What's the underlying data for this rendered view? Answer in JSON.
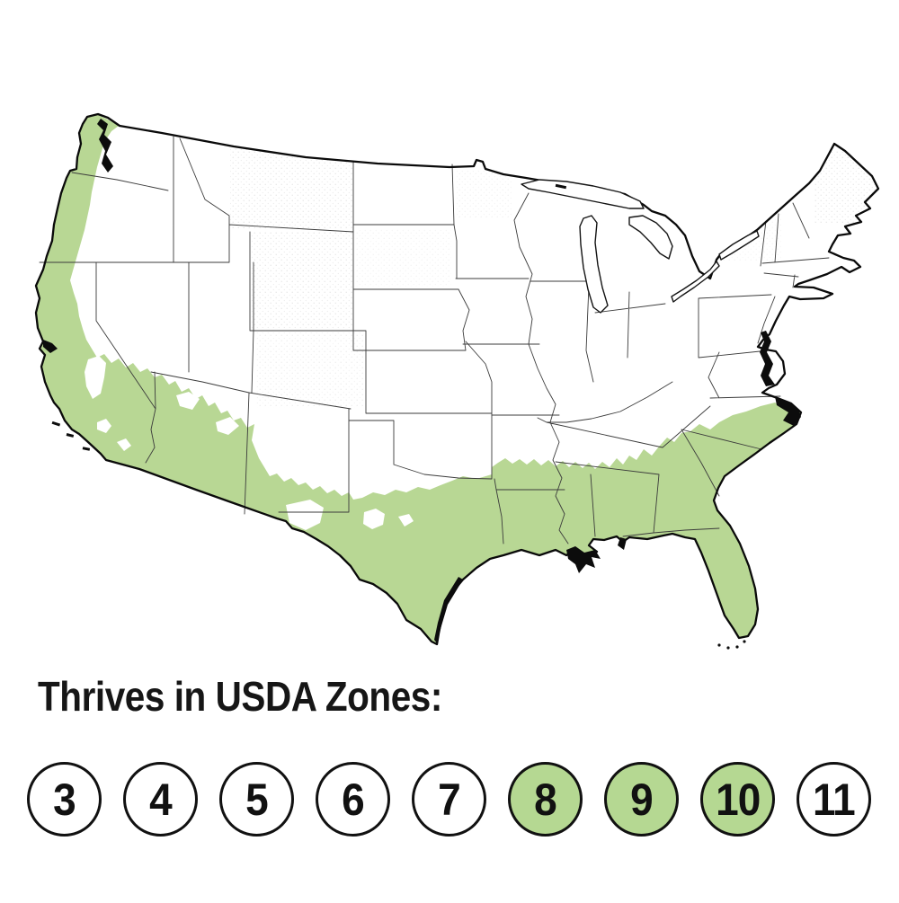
{
  "page": {
    "background_color": "#ffffff"
  },
  "map": {
    "kind": "USDA hardiness zone map of the contiguous United States",
    "land_color": "#ffffff",
    "highlight_color": "#b8d794",
    "coastline_color": "#0a0a0a",
    "state_border_color": "#3b3b3b",
    "highlighted_zones": [
      "8",
      "9",
      "10"
    ],
    "highlighted_region_hint": "Pacific coast strip and southern tier: southern California, Arizona, New Mexico, Texas, Gulf states, Florida, Georgia, South Carolina, coastal North Carolina"
  },
  "legend": {
    "title": "Thrives in USDA Zones:",
    "zones": [
      {
        "label": "3",
        "highlighted": false
      },
      {
        "label": "4",
        "highlighted": false
      },
      {
        "label": "5",
        "highlighted": false
      },
      {
        "label": "6",
        "highlighted": false
      },
      {
        "label": "7",
        "highlighted": false
      },
      {
        "label": "8",
        "highlighted": true
      },
      {
        "label": "9",
        "highlighted": true
      },
      {
        "label": "10",
        "highlighted": true
      },
      {
        "label": "11",
        "highlighted": false
      }
    ],
    "colors": {
      "highlight_fill": "#b5d892",
      "default_fill": "#ffffff",
      "circle_border": "#111111",
      "number_color": "#111111"
    }
  }
}
